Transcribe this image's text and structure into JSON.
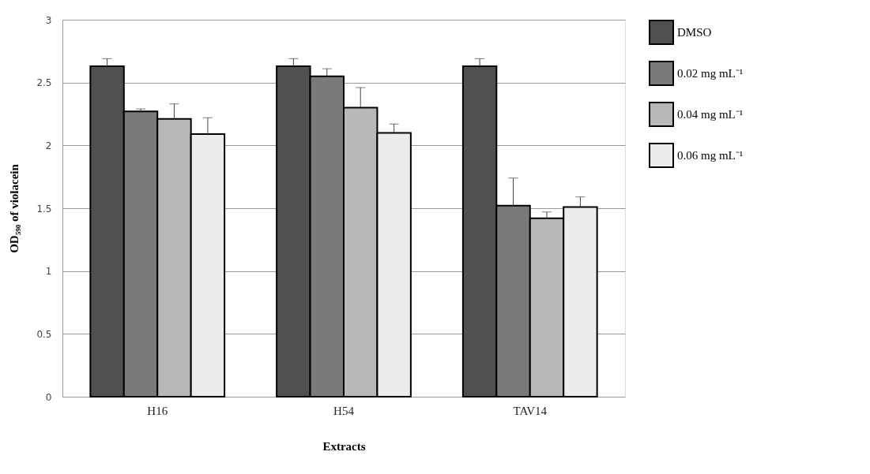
{
  "chart_data": {
    "type": "bar",
    "xlabel": "Extracts",
    "ylabel": "OD₅₉₀ of violacein",
    "categories": [
      "H16",
      "H54",
      "TAV14"
    ],
    "series": [
      {
        "name": "DMSO",
        "color": "#505050",
        "values": [
          2.63,
          2.63,
          2.63
        ],
        "errors": [
          [
            2.63,
            2.69
          ],
          [
            2.63,
            2.69
          ],
          [
            2.63,
            2.69
          ]
        ]
      },
      {
        "name": "0.02 mg mL⁻¹",
        "color": "#7a7a7a",
        "values": [
          2.27,
          2.55,
          1.52
        ],
        "errors": [
          [
            2.27,
            2.29
          ],
          [
            2.55,
            2.61
          ],
          [
            1.52,
            1.74
          ]
        ]
      },
      {
        "name": "0.04 mg mL⁻¹",
        "color": "#b8b8b8",
        "values": [
          2.21,
          2.3,
          1.42
        ],
        "errors": [
          [
            2.21,
            2.33
          ],
          [
            2.3,
            2.46
          ],
          [
            1.42,
            1.47
          ]
        ]
      },
      {
        "name": "0.06 mg mL⁻¹",
        "color": "#ececec",
        "values": [
          2.09,
          2.1,
          1.51
        ],
        "errors": [
          [
            2.09,
            2.22
          ],
          [
            2.1,
            2.17
          ],
          [
            1.51,
            1.59
          ]
        ]
      }
    ],
    "ylim": [
      0,
      3
    ],
    "yticks": [
      0,
      0.5,
      1,
      1.5,
      2,
      2.5,
      3
    ],
    "grid": "y",
    "legend": "right"
  }
}
